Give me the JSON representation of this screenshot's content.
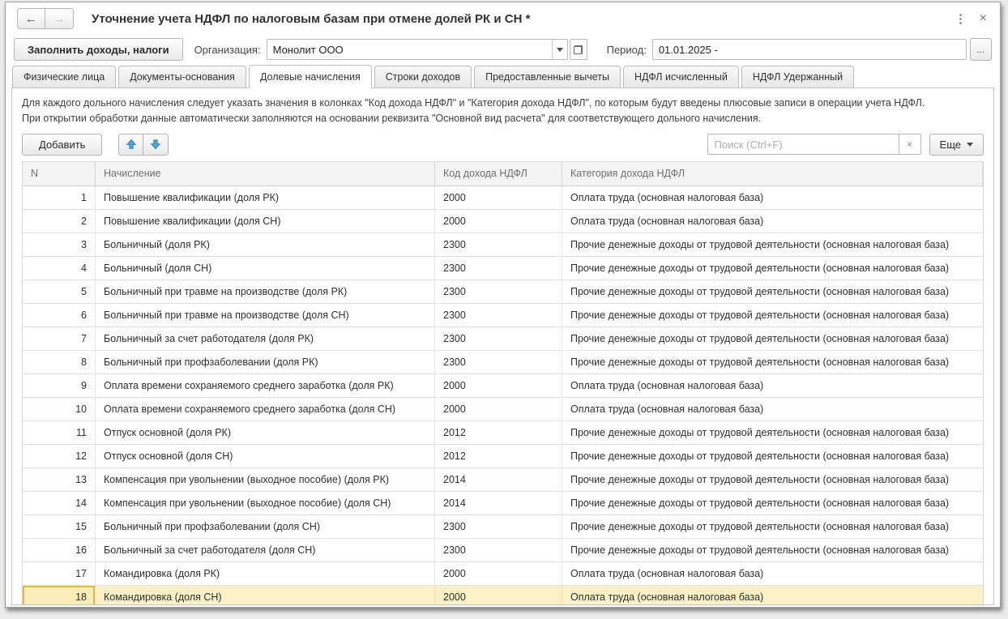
{
  "window": {
    "title": "Уточнение учета НДФЛ по налоговым базам при отмене долей РК и СН *",
    "back_icon": "←",
    "forward_icon": "→",
    "close_icon": "×"
  },
  "command_bar": {
    "fill_button": "Заполнить доходы, налоги",
    "org_label": "Организация:",
    "org_value": "Монолит ООО",
    "period_label": "Период:",
    "period_value": "01.01.2025 -",
    "period_more_button": "..."
  },
  "tabs": [
    {
      "label": "Физические лица",
      "active": false
    },
    {
      "label": "Документы-основания",
      "active": false
    },
    {
      "label": "Долевые начисления",
      "active": true
    },
    {
      "label": "Строки доходов",
      "active": false
    },
    {
      "label": "Предоставленные вычеты",
      "active": false
    },
    {
      "label": "НДФЛ исчисленный",
      "active": false
    },
    {
      "label": "НДФЛ Удержанный",
      "active": false
    }
  ],
  "description": [
    "Для каждого дольного начисления следует указать значения в колонках \"Код дохода НДФЛ\" и \"Категория дохода НДФЛ\", по которым будут введены плюсовые записи в операции учета НДФЛ.",
    "При открытии обработки данные автоматически заполняются на основании реквизита \"Основной вид расчета\" для соответствующего дольного начисления."
  ],
  "table_toolbar": {
    "add_label": "Добавить",
    "search_placeholder": "Поиск (Ctrl+F)",
    "clear_label": "×",
    "more_label": "Еще"
  },
  "table": {
    "columns": [
      "N",
      "Начисление",
      "Код дохода НДФЛ",
      "Категория дохода НДФЛ"
    ],
    "selected_row": 18,
    "rows": [
      {
        "n": "1",
        "name": "Повышение квалификации (доля РК)",
        "code": "2000",
        "category": "Оплата труда (основная налоговая база)"
      },
      {
        "n": "2",
        "name": "Повышение квалификации (доля СН)",
        "code": "2000",
        "category": "Оплата труда (основная налоговая база)"
      },
      {
        "n": "3",
        "name": "Больничный (доля РК)",
        "code": "2300",
        "category": "Прочие денежные доходы от трудовой деятельности (основная налоговая база)"
      },
      {
        "n": "4",
        "name": "Больничный (доля СН)",
        "code": "2300",
        "category": "Прочие денежные доходы от трудовой деятельности (основная налоговая база)"
      },
      {
        "n": "5",
        "name": "Больничный при травме на производстве (доля РК)",
        "code": "2300",
        "category": "Прочие денежные доходы от трудовой деятельности (основная налоговая база)"
      },
      {
        "n": "6",
        "name": "Больничный при травме на производстве (доля СН)",
        "code": "2300",
        "category": "Прочие денежные доходы от трудовой деятельности (основная налоговая база)"
      },
      {
        "n": "7",
        "name": "Больничный за счет работодателя (доля РК)",
        "code": "2300",
        "category": "Прочие денежные доходы от трудовой деятельности (основная налоговая база)"
      },
      {
        "n": "8",
        "name": "Больничный при профзаболевании (доля РК)",
        "code": "2300",
        "category": "Прочие денежные доходы от трудовой деятельности (основная налоговая база)"
      },
      {
        "n": "9",
        "name": "Оплата времени сохраняемого среднего заработка (доля РК)",
        "code": "2000",
        "category": "Оплата труда (основная налоговая база)"
      },
      {
        "n": "10",
        "name": "Оплата времени сохраняемого среднего заработка (доля СН)",
        "code": "2000",
        "category": "Оплата труда (основная налоговая база)"
      },
      {
        "n": "11",
        "name": "Отпуск основной (доля РК)",
        "code": "2012",
        "category": "Прочие денежные доходы от трудовой деятельности (основная налоговая база)"
      },
      {
        "n": "12",
        "name": "Отпуск основной (доля СН)",
        "code": "2012",
        "category": "Прочие денежные доходы от трудовой деятельности (основная налоговая база)"
      },
      {
        "n": "13",
        "name": "Компенсация при увольнении (выходное пособие) (доля РК)",
        "code": "2014",
        "category": "Прочие денежные доходы от трудовой деятельности (основная налоговая база)"
      },
      {
        "n": "14",
        "name": "Компенсация при увольнении (выходное пособие) (доля СН)",
        "code": "2014",
        "category": "Прочие денежные доходы от трудовой деятельности (основная налоговая база)"
      },
      {
        "n": "15",
        "name": "Больничный при профзаболевании (доля СН)",
        "code": "2300",
        "category": "Прочие денежные доходы от трудовой деятельности (основная налоговая база)"
      },
      {
        "n": "16",
        "name": "Больничный за счет работодателя (доля СН)",
        "code": "2300",
        "category": "Прочие денежные доходы от трудовой деятельности (основная налоговая база)"
      },
      {
        "n": "17",
        "name": "Командировка (доля РК)",
        "code": "2000",
        "category": "Оплата труда (основная налоговая база)"
      },
      {
        "n": "18",
        "name": "Командировка (доля СН)",
        "code": "2000",
        "category": "Оплата труда (основная налоговая база)"
      }
    ]
  },
  "colors": {
    "selection_row": "#fbf0c6",
    "selection_cell_border": "#ddb952",
    "move_arrow_blue": "#4da3dd",
    "header_bg": "#f4f4f4"
  }
}
